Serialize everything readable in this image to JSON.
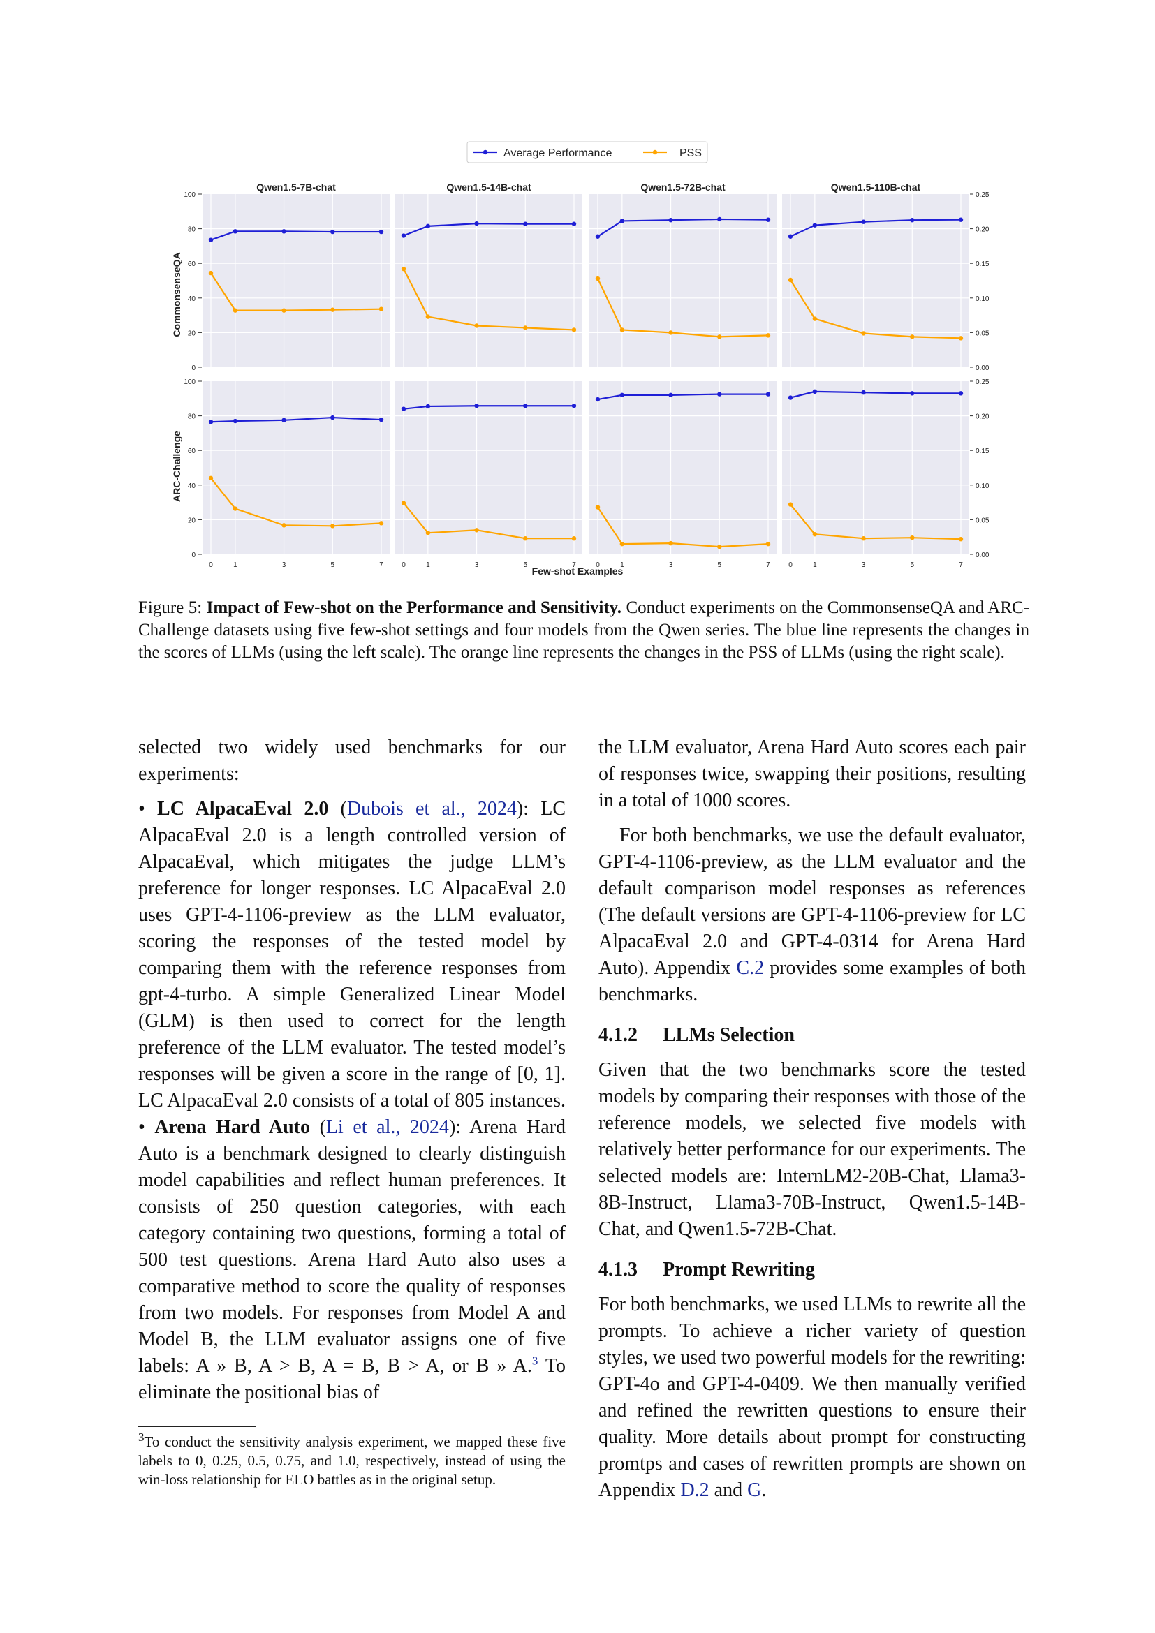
{
  "figure": {
    "legend": [
      {
        "name": "Average Performance",
        "color": "#1f1fd6"
      },
      {
        "name": "PSS",
        "color": "#ffa500"
      }
    ],
    "x_axis_label": "Few-shot Examples",
    "row_labels": [
      "CommonsenseQA",
      "ARC-Challenge"
    ],
    "panel_titles": [
      "Qwen1.5-7B-chat",
      "Qwen1.5-14B-chat",
      "Qwen1.5-72B-chat",
      "Qwen1.5-110B-chat"
    ]
  },
  "chart_data": {
    "type": "line",
    "x": [
      0,
      1,
      3,
      5,
      7
    ],
    "x_ticks": [
      "0",
      "1",
      "3",
      "5",
      "7"
    ],
    "left_ylim": [
      0,
      100
    ],
    "left_ticks": [
      "0",
      "20",
      "40",
      "60",
      "80",
      "100"
    ],
    "right_ylim": [
      0,
      0.25
    ],
    "right_ticks": [
      "0.00",
      "0.05",
      "0.10",
      "0.15",
      "0.20",
      "0.25"
    ],
    "grid": true,
    "legend_position": "top-center",
    "panels": [
      {
        "row": 0,
        "col": 0,
        "performance": [
          73.5,
          78.5,
          78.5,
          78.2,
          78.2
        ],
        "pss": [
          0.136,
          0.082,
          0.082,
          0.083,
          0.084
        ]
      },
      {
        "row": 0,
        "col": 1,
        "performance": [
          76.0,
          81.5,
          83.0,
          82.8,
          82.8
        ],
        "pss": [
          0.142,
          0.073,
          0.06,
          0.057,
          0.054
        ]
      },
      {
        "row": 0,
        "col": 2,
        "performance": [
          75.5,
          84.5,
          85.0,
          85.5,
          85.2
        ],
        "pss": [
          0.128,
          0.054,
          0.05,
          0.044,
          0.046
        ]
      },
      {
        "row": 0,
        "col": 3,
        "performance": [
          75.5,
          82.0,
          84.0,
          85.0,
          85.2
        ],
        "pss": [
          0.126,
          0.07,
          0.049,
          0.044,
          0.042
        ]
      },
      {
        "row": 1,
        "col": 0,
        "performance": [
          76.5,
          77.0,
          77.5,
          79.0,
          77.8
        ],
        "pss": [
          0.11,
          0.066,
          0.042,
          0.041,
          0.045
        ]
      },
      {
        "row": 1,
        "col": 1,
        "performance": [
          84.0,
          85.5,
          85.8,
          85.8,
          85.8
        ],
        "pss": [
          0.074,
          0.031,
          0.035,
          0.023,
          0.023
        ]
      },
      {
        "row": 1,
        "col": 2,
        "performance": [
          89.5,
          92.0,
          92.0,
          92.5,
          92.5
        ],
        "pss": [
          0.068,
          0.015,
          0.016,
          0.011,
          0.015
        ]
      },
      {
        "row": 1,
        "col": 3,
        "performance": [
          90.5,
          94.0,
          93.5,
          93.0,
          93.0
        ],
        "pss": [
          0.072,
          0.029,
          0.023,
          0.024,
          0.022
        ]
      }
    ]
  },
  "caption": {
    "label": "Figure 5:",
    "bold": "Impact of Few-shot on the Performance and Sensitivity.",
    "text": "Conduct experiments on the CommonsenseQA and ARC-Challenge datasets using five few-shot settings and four models from the Qwen series. The blue line represents the changes in the scores of LLMs (using the left scale). The orange line represents the changes in the PSS of LLMs (using the right scale)."
  },
  "left_column": {
    "p1": "selected two widely used benchmarks for our experiments:",
    "b1_title": "LC AlpacaEval 2.0",
    "b1_cite": "Dubois et al., 2024",
    "b1_text": "LC AlpacaEval 2.0 is a length controlled version of AlpacaEval, which mitigates the judge LLM’s preference for longer responses. LC AlpacaEval 2.0 uses GPT-4-1106-preview as the LLM evaluator, scoring the responses of the tested model by comparing them with the reference responses from gpt-4-turbo. A simple Generalized Linear Model (GLM) is then used to correct for the length preference of the LLM evaluator. The tested model’s responses will be given a score in the range of [0, 1]. LC AlpacaEval 2.0 consists of a total of 805 instances.",
    "b2_title": "Arena Hard Auto",
    "b2_cite": "Li et al., 2024",
    "b2_text": "Arena Hard Auto is a benchmark designed to clearly distinguish model capabilities and reflect human preferences. It consists of 250 question categories, with each category containing two questions, forming a total of 500 test questions. Arena Hard Auto also uses a comparative method to score the quality of responses from two models. For responses from Model A and Model B, the LLM evaluator assigns one of five labels: A » B, A > B, A = B, B > A, or B » A.",
    "b2_sup": "3",
    "b2_tail": "To eliminate the positional bias of"
  },
  "footnote": {
    "mark": "3",
    "text": "To conduct the sensitivity analysis experiment, we mapped these five labels to 0, 0.25, 0.5, 0.75, and 1.0, respectively, instead of using the win-loss relationship for ELO battles as in the original setup."
  },
  "right_column": {
    "p1": "the LLM evaluator, Arena Hard Auto scores each pair of responses twice, swapping their positions, resulting in a total of 1000 scores.",
    "p2a": "For both benchmarks, we use the default evaluator, GPT-4-1106-preview, as the LLM evaluator and the default comparison model responses as references (The default versions are GPT-4-1106-preview for LC AlpacaEval 2.0 and GPT-4-0314 for Arena Hard Auto). Appendix",
    "p2_ref": "C.2",
    "p2b": "provides some examples of both benchmarks.",
    "h1_num": "4.1.2",
    "h1_title": "LLMs Selection",
    "p3": "Given that the two benchmarks score the tested models by comparing their responses with those of the reference models, we selected five models with relatively better performance for our experiments. The selected models are: InternLM2-20B-Chat, Llama3-8B-Instruct, Llama3-70B-Instruct, Qwen1.5-14B-Chat, and Qwen1.5-72B-Chat.",
    "h2_num": "4.1.3",
    "h2_title": "Prompt Rewriting",
    "p4a": "For both benchmarks, we used LLMs to rewrite all the prompts. To achieve a richer variety of question styles, we used two powerful models for the rewriting: GPT-4o and GPT-4-0409. We then manually verified and refined the rewritten questions to ensure their quality. More details about prompt for constructing promtps and cases of rewritten prompts are shown on Appendix",
    "p4_ref1": "D.2",
    "p4_and": "and",
    "p4_ref2": "G",
    "p4_end": "."
  }
}
